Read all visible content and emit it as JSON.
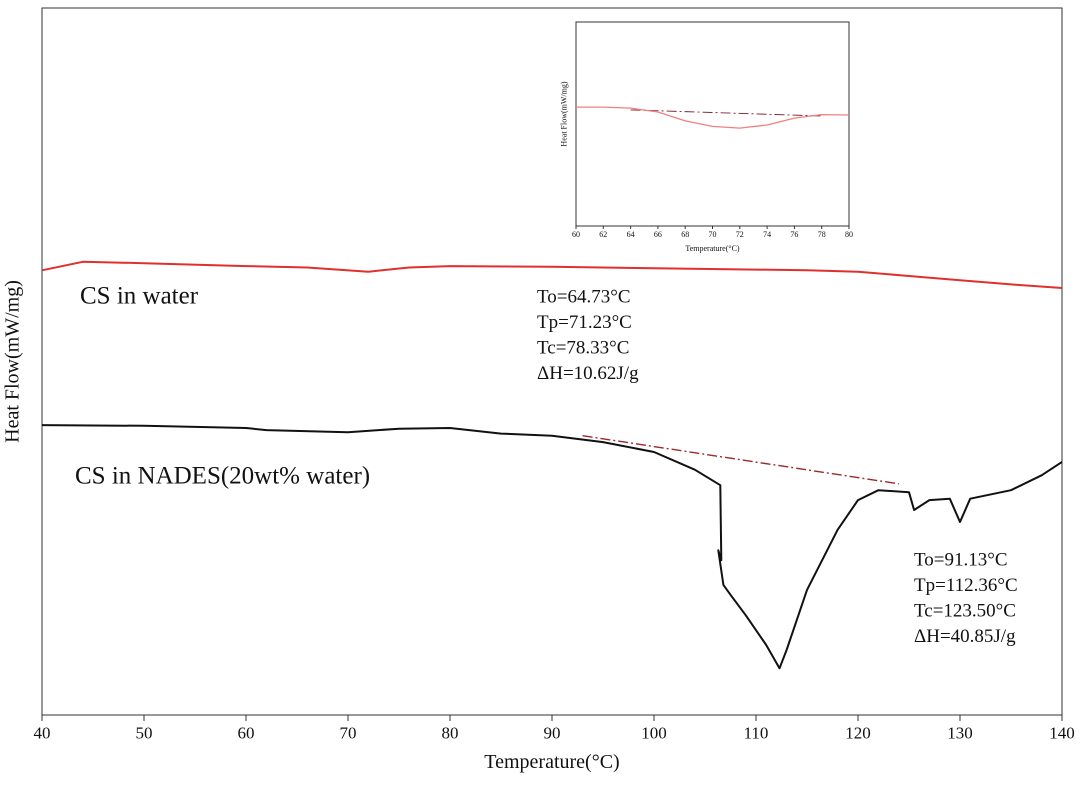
{
  "chart_data": [
    {
      "type": "line",
      "xlabel": "Temperature(°C)",
      "ylabel": "Heat Flow(mW/mg)",
      "xlim": [
        40,
        140
      ],
      "xticks": [
        40,
        50,
        60,
        70,
        80,
        90,
        100,
        110,
        120,
        130,
        140
      ],
      "ylim": [
        0,
        100
      ],
      "series": [
        {
          "name": "CS in water",
          "color": "#e0302e",
          "x": [
            40,
            44,
            50,
            60,
            66,
            72,
            76,
            80,
            90,
            100,
            110,
            115,
            120,
            125,
            130,
            135,
            140
          ],
          "values": [
            62.9,
            64.1,
            63.9,
            63.5,
            63.3,
            62.7,
            63.3,
            63.5,
            63.4,
            63.2,
            63.0,
            62.9,
            62.7,
            62.1,
            61.5,
            60.9,
            60.4
          ]
        },
        {
          "name": "CS in NADES(20wt% water)",
          "color": "#111111",
          "x": [
            40,
            50,
            60,
            62,
            70,
            75,
            80,
            85,
            90,
            95,
            100,
            104,
            106.5,
            106.6,
            106.3,
            106.8,
            107.5,
            109,
            111,
            112.3,
            113,
            115,
            118,
            120,
            122,
            125,
            125.5,
            127,
            129,
            130,
            131,
            135,
            138,
            140
          ],
          "values": [
            41.0,
            40.9,
            40.6,
            40.3,
            40.0,
            40.5,
            40.6,
            39.8,
            39.5,
            38.6,
            37.2,
            34.7,
            32.5,
            21.9,
            23.3,
            18.4,
            17.0,
            14.1,
            9.9,
            6.6,
            9.2,
            17.7,
            26.2,
            30.4,
            31.8,
            31.5,
            29.0,
            30.4,
            30.6,
            27.3,
            30.6,
            31.8,
            33.9,
            35.8
          ]
        }
      ],
      "baselines": [
        {
          "color": "#9b2a2a",
          "x": [
            93,
            124
          ],
          "values": [
            39.5,
            32.7
          ]
        }
      ],
      "annotations": [
        [
          "To=64.73°C",
          "Tp=71.23°C",
          "Tc=78.33°C",
          "ΔH=10.62J/g"
        ],
        [
          "To=91.13°C",
          "Tp=112.36°C",
          "Tc=123.50°C",
          "ΔH=40.85J/g"
        ]
      ]
    },
    {
      "type": "line",
      "xlabel": "Temperature(°C)",
      "ylabel": "Heat Flow(mW/mg)",
      "xlim": [
        60,
        80
      ],
      "xticks": [
        60,
        62,
        64,
        66,
        68,
        70,
        72,
        74,
        76,
        78,
        80
      ],
      "ylim": [
        0,
        100
      ],
      "series": [
        {
          "color": "#f08080",
          "x": [
            60,
            62,
            64,
            66,
            68,
            70,
            72,
            74,
            76,
            78,
            80
          ],
          "values": [
            58.3,
            58.3,
            57.8,
            55.9,
            51.5,
            48.8,
            48.0,
            49.5,
            52.9,
            54.6,
            54.4
          ]
        }
      ],
      "baselines": [
        {
          "color": "#7a1f2a",
          "x": [
            64,
            78
          ],
          "values": [
            56.9,
            53.9
          ]
        }
      ]
    }
  ]
}
